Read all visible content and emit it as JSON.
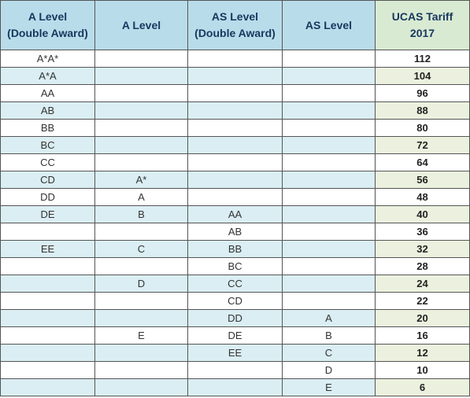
{
  "headers": {
    "a_level_double_line1": "A Level",
    "a_level_double_line2": "(Double Award)",
    "a_level": "A Level",
    "as_level_double_line1": "AS Level",
    "as_level_double_line2": "(Double Award)",
    "as_level": "AS Level",
    "ucas_line1": "UCAS Tariff",
    "ucas_line2": "2017"
  },
  "rows": [
    {
      "a_double": "A*A*",
      "a": "",
      "as_double": "",
      "as": "",
      "ucas": "112"
    },
    {
      "a_double": "A*A",
      "a": "",
      "as_double": "",
      "as": "",
      "ucas": "104"
    },
    {
      "a_double": "AA",
      "a": "",
      "as_double": "",
      "as": "",
      "ucas": "96"
    },
    {
      "a_double": "AB",
      "a": "",
      "as_double": "",
      "as": "",
      "ucas": "88"
    },
    {
      "a_double": "BB",
      "a": "",
      "as_double": "",
      "as": "",
      "ucas": "80"
    },
    {
      "a_double": "BC",
      "a": "",
      "as_double": "",
      "as": "",
      "ucas": "72"
    },
    {
      "a_double": "CC",
      "a": "",
      "as_double": "",
      "as": "",
      "ucas": "64"
    },
    {
      "a_double": "CD",
      "a": "A*",
      "as_double": "",
      "as": "",
      "ucas": "56"
    },
    {
      "a_double": "DD",
      "a": "A",
      "as_double": "",
      "as": "",
      "ucas": "48"
    },
    {
      "a_double": "DE",
      "a": "B",
      "as_double": "AA",
      "as": "",
      "ucas": "40"
    },
    {
      "a_double": "",
      "a": "",
      "as_double": "AB",
      "as": "",
      "ucas": "36"
    },
    {
      "a_double": "EE",
      "a": "C",
      "as_double": "BB",
      "as": "",
      "ucas": "32"
    },
    {
      "a_double": "",
      "a": "",
      "as_double": "BC",
      "as": "",
      "ucas": "28"
    },
    {
      "a_double": "",
      "a": "D",
      "as_double": "CC",
      "as": "",
      "ucas": "24"
    },
    {
      "a_double": "",
      "a": "",
      "as_double": "CD",
      "as": "",
      "ucas": "22"
    },
    {
      "a_double": "",
      "a": "",
      "as_double": "DD",
      "as": "A",
      "ucas": "20"
    },
    {
      "a_double": "",
      "a": "E",
      "as_double": "DE",
      "as": "B",
      "ucas": "16"
    },
    {
      "a_double": "",
      "a": "",
      "as_double": "EE",
      "as": "C",
      "ucas": "12"
    },
    {
      "a_double": "",
      "a": "",
      "as_double": "",
      "as": "D",
      "ucas": "10"
    },
    {
      "a_double": "",
      "a": "",
      "as_double": "",
      "as": "E",
      "ucas": "6"
    }
  ]
}
